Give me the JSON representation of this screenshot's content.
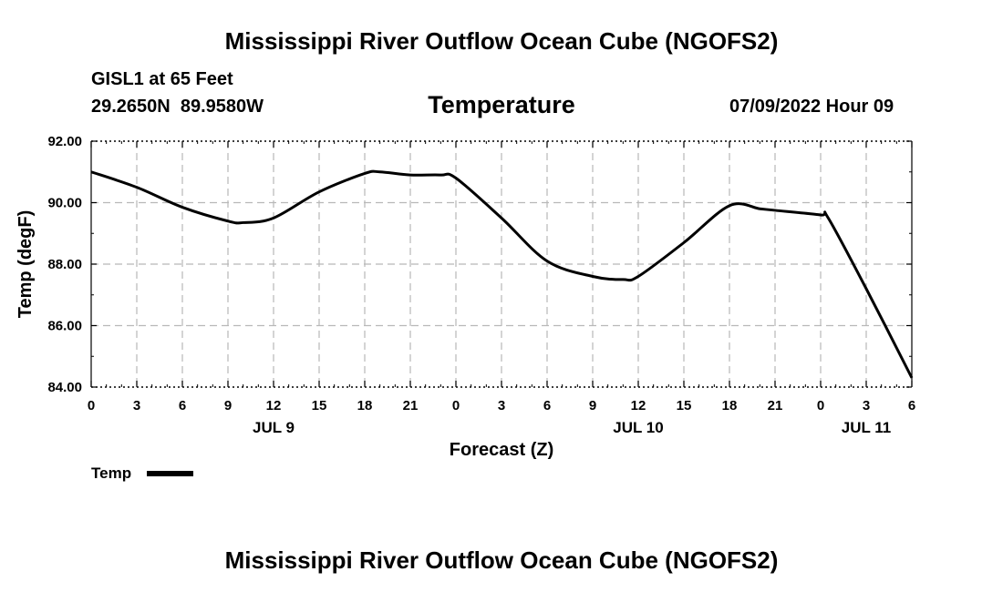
{
  "page": {
    "title": "Mississippi River Outflow Ocean Cube (NGOFS2)",
    "station": "GISL1 at 65 Feet",
    "coords": "29.2650N  89.9580W",
    "datetime": "07/09/2022 Hour 09",
    "footer_title": "Mississippi River Outflow Ocean Cube (NGOFS2)"
  },
  "chart_data": {
    "type": "line",
    "title": "Temperature",
    "xlabel": "Forecast (Z)",
    "ylabel": "Temp (degF)",
    "ylim": [
      84,
      92
    ],
    "xlim": [
      0,
      54
    ],
    "y_ticks": [
      "84.00",
      "86.00",
      "88.00",
      "90.00",
      "92.00"
    ],
    "x_ticks": [
      "0",
      "3",
      "6",
      "9",
      "12",
      "15",
      "18",
      "21",
      "0",
      "3",
      "6",
      "9",
      "12",
      "15",
      "18",
      "21",
      "0",
      "3",
      "6"
    ],
    "date_labels": [
      {
        "label": "JUL 9",
        "hour": 12
      },
      {
        "label": "JUL 10",
        "hour": 36
      },
      {
        "label": "JUL 11",
        "hour": 51
      }
    ],
    "grid": true,
    "legend_position": "bottom-left",
    "series": [
      {
        "name": "Temp",
        "color": "#000000",
        "x": [
          0,
          3,
          6,
          9,
          10,
          12,
          15,
          18,
          19,
          21,
          23,
          24,
          27,
          30,
          33,
          35,
          36,
          39,
          42,
          44,
          45,
          48,
          48.5,
          51,
          54
        ],
        "y": [
          91.0,
          90.5,
          89.85,
          89.4,
          89.35,
          89.5,
          90.35,
          90.95,
          91.0,
          90.9,
          90.9,
          90.8,
          89.5,
          88.1,
          87.6,
          87.5,
          87.6,
          88.7,
          89.9,
          89.8,
          89.75,
          89.6,
          89.5,
          87.2,
          84.3
        ]
      }
    ]
  }
}
